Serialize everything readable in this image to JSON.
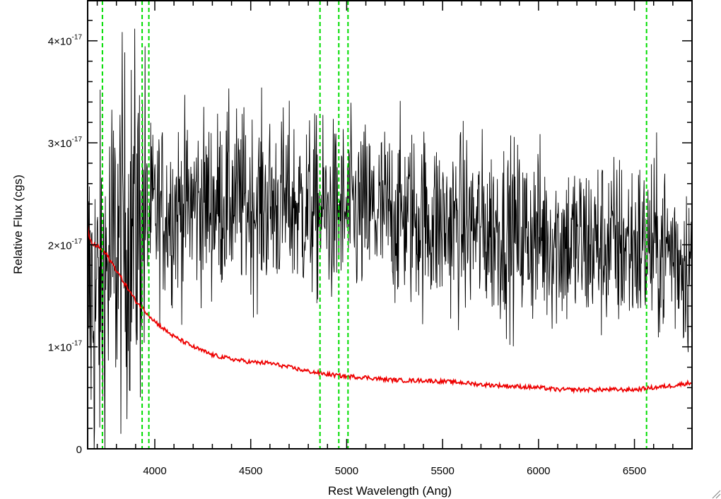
{
  "chart_data": {
    "type": "line",
    "title": "",
    "xlabel": "Rest Wavelength (Ang)",
    "ylabel": "Relative Flux (cgs)",
    "xlim": [
      3650,
      6800
    ],
    "ylim": [
      0,
      4.4e-17
    ],
    "grid": false,
    "legend": "none",
    "x_ticks": [
      {
        "value": 4000,
        "label": "4000"
      },
      {
        "value": 4500,
        "label": "4500"
      },
      {
        "value": 5000,
        "label": "5000"
      },
      {
        "value": 5500,
        "label": "5500"
      },
      {
        "value": 6000,
        "label": "6000"
      },
      {
        "value": 6500,
        "label": "6500"
      }
    ],
    "y_ticks": [
      {
        "value": 0,
        "mantissa": "0",
        "exponent": ""
      },
      {
        "value": 1e-17,
        "mantissa": "1×10",
        "exponent": "-17"
      },
      {
        "value": 2e-17,
        "mantissa": "2×10",
        "exponent": "-17"
      },
      {
        "value": 3e-17,
        "mantissa": "3×10",
        "exponent": "-17"
      },
      {
        "value": 4e-17,
        "mantissa": "4×10",
        "exponent": "-17"
      }
    ],
    "reference_lines": {
      "color": "#00dd00",
      "style": "dashed",
      "wavelengths": [
        3727,
        3934,
        3969,
        4861,
        4959,
        5007,
        6563
      ]
    },
    "series": [
      {
        "color": "#000000",
        "style": "noisy observed spectrum",
        "x": [
          3650,
          3700,
          3750,
          3800,
          3850,
          3900,
          3950,
          4000,
          4100,
          4200,
          4300,
          4400,
          4500,
          4600,
          4700,
          4800,
          4900,
          5000,
          5100,
          5200,
          5300,
          5400,
          5500,
          5600,
          5700,
          5800,
          5900,
          6000,
          6100,
          6200,
          6300,
          6400,
          6500,
          6600,
          6700,
          6800
        ],
        "y": [
          1.5e-17,
          1.4e-17,
          1.7e-17,
          2e-17,
          2.1e-17,
          2.2e-17,
          2.25e-17,
          2.3e-17,
          2.35e-17,
          2.4e-17,
          2.4e-17,
          2.45e-17,
          2.4e-17,
          2.4e-17,
          2.4e-17,
          2.35e-17,
          2.3e-17,
          2.3e-17,
          2.3e-17,
          2.3e-17,
          2.3e-17,
          2.25e-17,
          2.2e-17,
          2.2e-17,
          2.15e-17,
          2.15e-17,
          2.1e-17,
          2.1e-17,
          2.05e-17,
          2e-17,
          2e-17,
          2e-17,
          2e-17,
          1.95e-17,
          1.95e-17,
          1.8e-17
        ]
      },
      {
        "color": "#ee0000",
        "style": "model continuum",
        "x": [
          3650,
          3660,
          3680,
          3700,
          3750,
          3800,
          3850,
          3900,
          3950,
          4000,
          4050,
          4100,
          4200,
          4300,
          4400,
          4500,
          4600,
          4700,
          4800,
          4900,
          5000,
          5100,
          5200,
          5300,
          5400,
          5500,
          5600,
          5700,
          5800,
          5900,
          6000,
          6100,
          6200,
          6300,
          6400,
          6500,
          6600,
          6700,
          6800
        ],
        "y": [
          2.2e-17,
          2.05e-17,
          2e-17,
          1.99e-17,
          1.9e-17,
          1.75e-17,
          1.6e-17,
          1.45e-17,
          1.35e-17,
          1.25e-17,
          1.17e-17,
          1.1e-17,
          1e-17,
          9.2e-18,
          8.8e-18,
          8.5e-18,
          8.4e-18,
          8e-18,
          7.6e-18,
          7.3e-18,
          7.1e-18,
          7e-18,
          6.8e-18,
          6.7e-18,
          6.7e-18,
          6.6e-18,
          6.5e-18,
          6.3e-18,
          6.2e-18,
          6.1e-18,
          6e-18,
          5.8e-18,
          5.8e-18,
          5.8e-18,
          5.8e-18,
          5.8e-18,
          6e-18,
          6.2e-18,
          6.5e-18
        ]
      }
    ]
  }
}
